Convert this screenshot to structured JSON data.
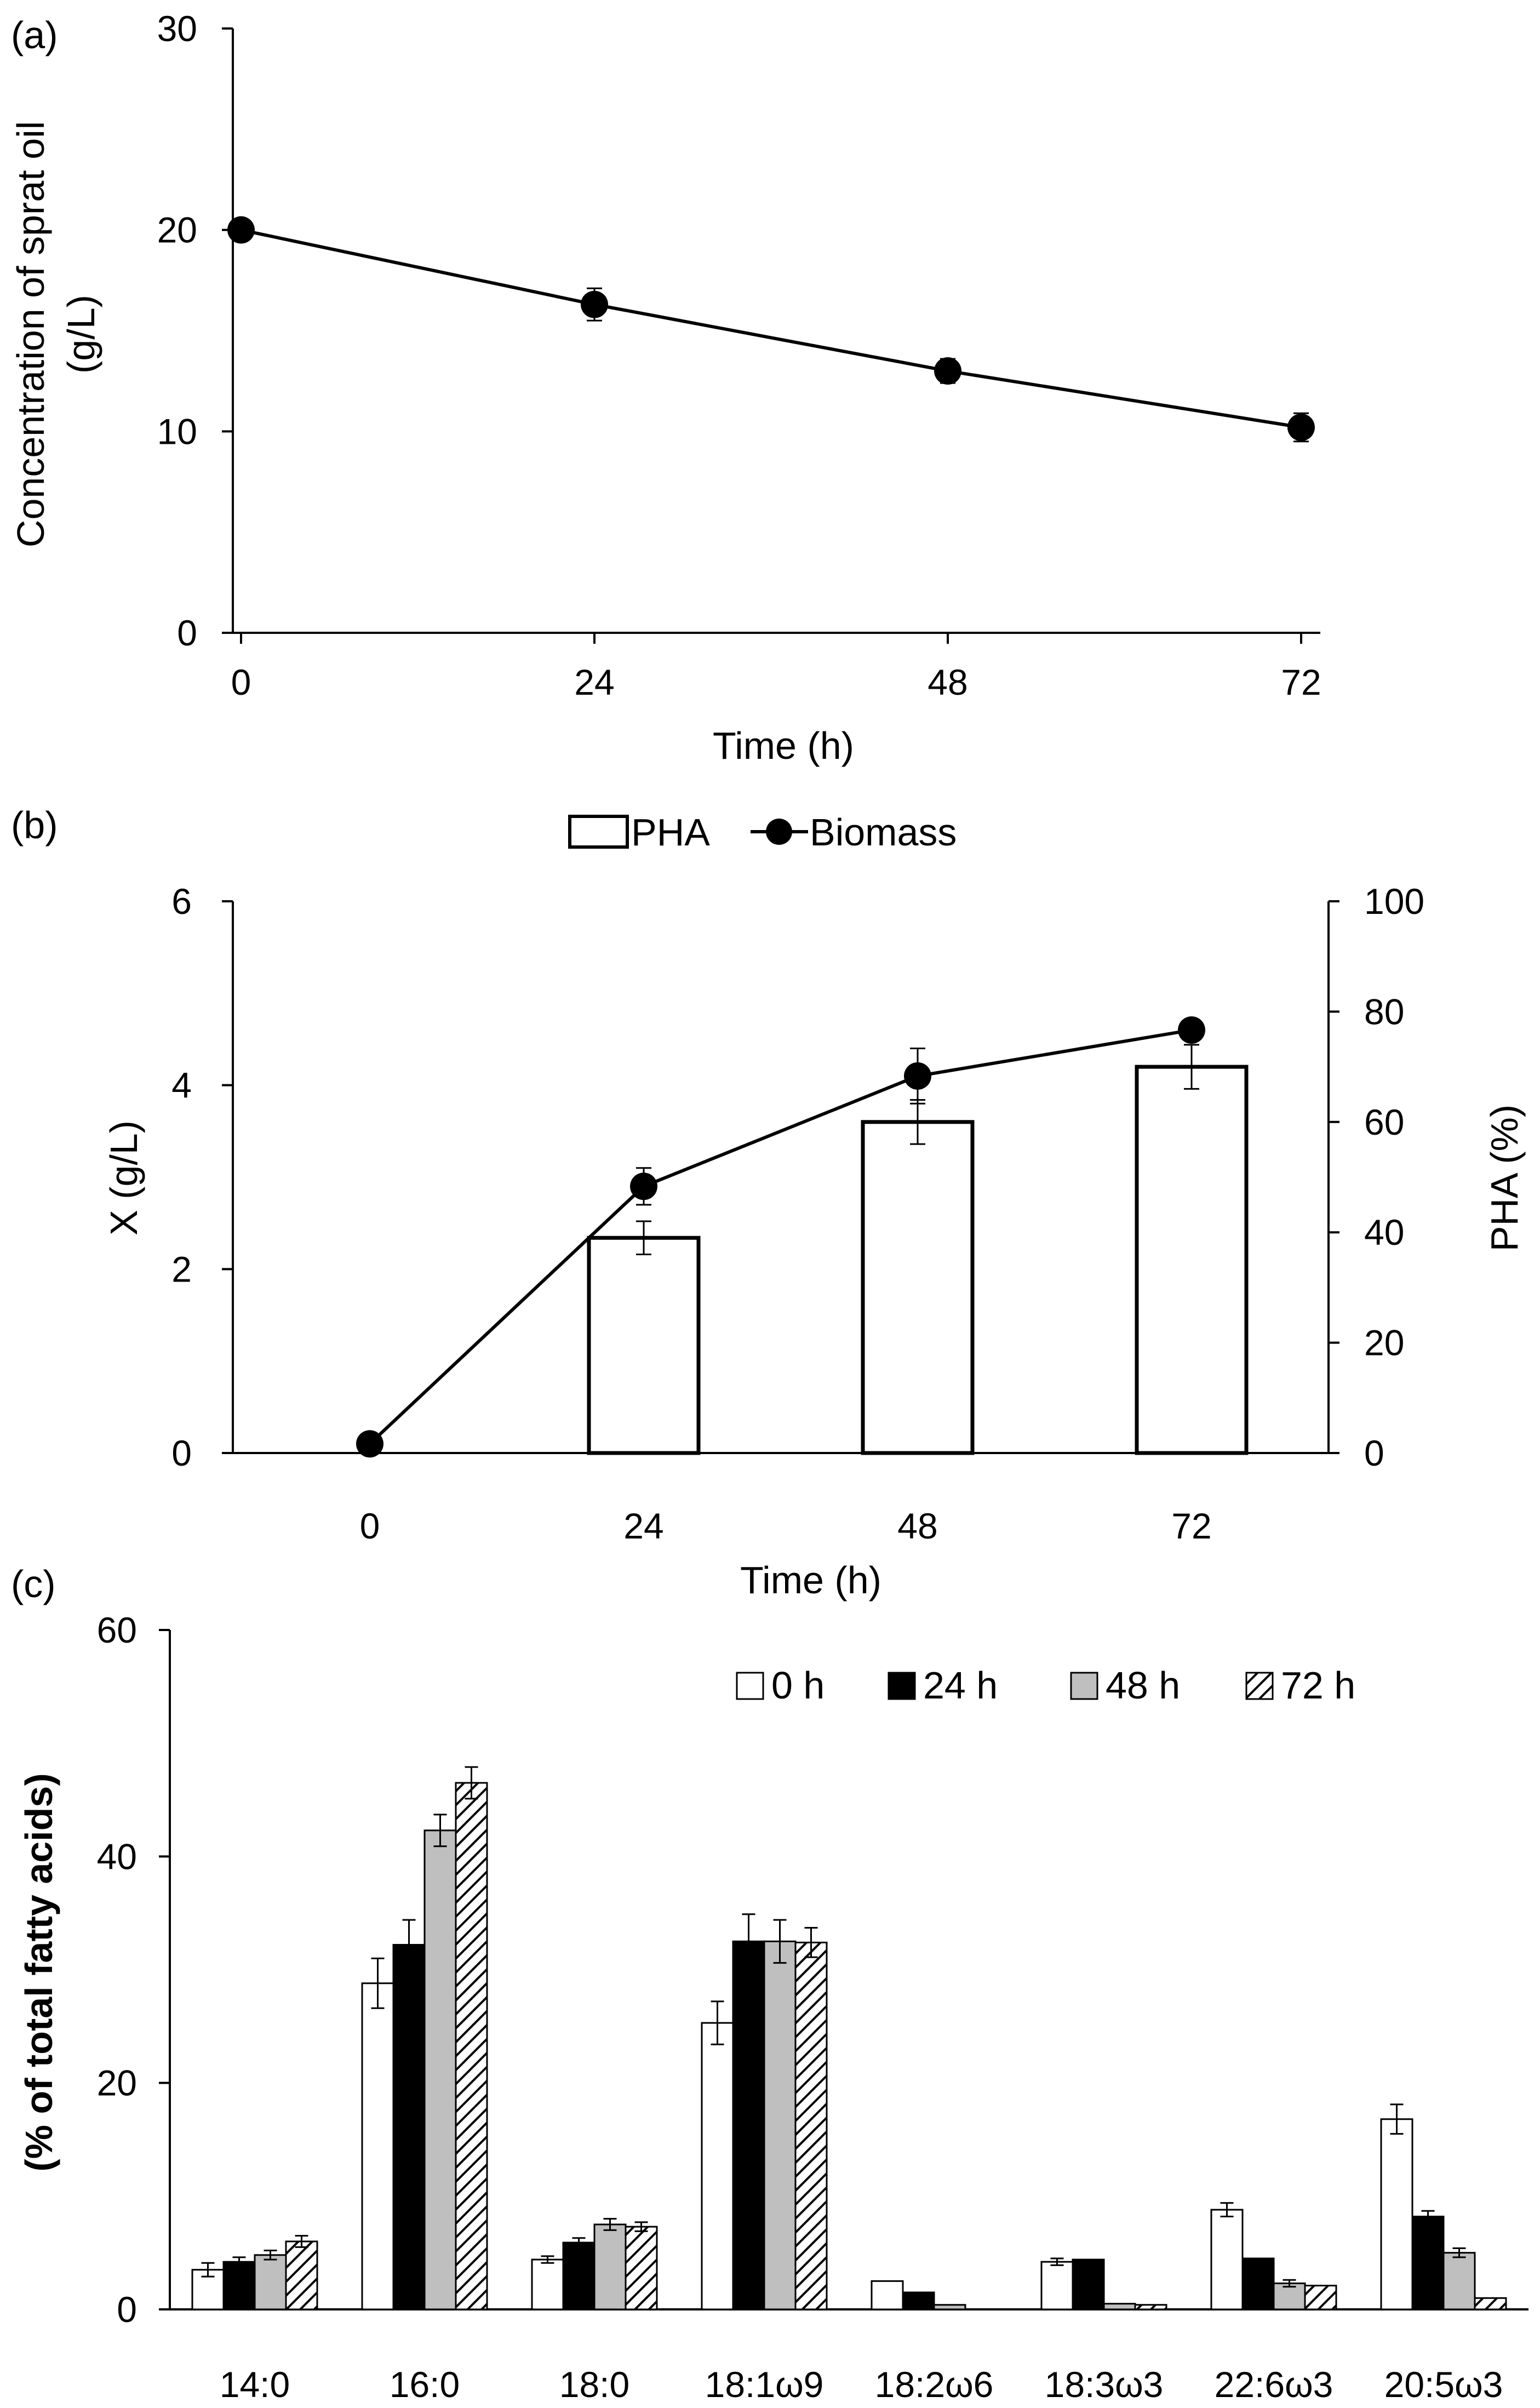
{
  "chart_data": [
    {
      "panel_label": "(a)",
      "type": "line",
      "title": "",
      "xlabel": "Time (h)",
      "ylabel": "Concentration of sprat oil (g/L)",
      "ylabel_lines": [
        "Concentration of sprat oil",
        "(g/L)"
      ],
      "x": [
        0,
        24,
        48,
        72
      ],
      "xlim": [
        0,
        72
      ],
      "x_ticks": [
        "0",
        "24",
        "48",
        "72"
      ],
      "ylim": [
        0,
        30
      ],
      "y_ticks": [
        "0",
        "10",
        "20",
        "30"
      ],
      "series": [
        {
          "values": [
            20.0,
            16.3,
            13.0,
            10.2
          ],
          "errors": [
            0.4,
            0.8,
            0.6,
            0.7
          ],
          "marker": "circle",
          "color": "#000000"
        }
      ],
      "grid": false
    },
    {
      "panel_label": "(b)",
      "type": "bar+line",
      "title": "",
      "xlabel": "Time (h)",
      "ylabel_left": "X (g/L)",
      "ylabel_right": "PHA (%)",
      "categories": [
        "0",
        "24",
        "48",
        "72"
      ],
      "ylim_left": [
        0,
        6
      ],
      "y_ticks_left": [
        "0",
        "2",
        "4",
        "6"
      ],
      "ylim_right": [
        0,
        100
      ],
      "y_ticks_right": [
        "0",
        "20",
        "40",
        "60",
        "80",
        "100"
      ],
      "legend": [
        "PHA",
        "Biomass"
      ],
      "legend_position": "top-center",
      "series": [
        {
          "name": "PHA",
          "kind": "bar",
          "axis": "right",
          "values": [
            0,
            39,
            60,
            70
          ],
          "errors": [
            0,
            3,
            4,
            4
          ],
          "color": "#ffffff"
        },
        {
          "name": "Biomass",
          "kind": "line",
          "axis": "left",
          "values": [
            0.1,
            2.9,
            4.1,
            4.6
          ],
          "errors": [
            0,
            0.2,
            0.3,
            0
          ],
          "marker": "circle",
          "color": "#000000"
        }
      ],
      "grid": false
    },
    {
      "panel_label": "(c)",
      "type": "bar",
      "title": "",
      "xlabel": "",
      "ylabel": "(% of total fatty acids)",
      "categories": [
        "14:0",
        "16:0",
        "18:0",
        "18:1ω9",
        "18:2ω6",
        "18:3ω3",
        "22:6ω3",
        "20:5ω3"
      ],
      "ylim": [
        0,
        60
      ],
      "y_ticks": [
        "0",
        "20",
        "40",
        "60"
      ],
      "legend": [
        "0 h",
        "24 h",
        "48 h",
        "72 h"
      ],
      "legend_position": "top-right",
      "series": [
        {
          "name": "0 h",
          "fill": "#ffffff",
          "values": [
            3.5,
            28.8,
            4.4,
            25.3,
            2.5,
            4.2,
            8.8,
            16.8
          ],
          "errors": [
            0.6,
            2.2,
            0.3,
            1.9,
            0,
            0.3,
            0.6,
            1.3
          ]
        },
        {
          "name": "24 h",
          "fill": "#000000",
          "values": [
            4.2,
            32.2,
            5.9,
            32.5,
            1.5,
            4.4,
            4.5,
            8.2
          ],
          "errors": [
            0.4,
            2.2,
            0.4,
            2.4,
            0,
            0,
            0,
            0.5
          ]
        },
        {
          "name": "48 h",
          "fill": "#bfbfbf",
          "values": [
            4.8,
            42.3,
            7.5,
            32.5,
            0.4,
            0.5,
            2.3,
            5.0
          ],
          "errors": [
            0.4,
            1.4,
            0.5,
            1.9,
            0,
            0,
            0.3,
            0.4
          ]
        },
        {
          "name": "72 h",
          "fill": "hatch",
          "values": [
            6.0,
            46.5,
            7.3,
            32.4,
            0,
            0.4,
            2.1,
            1.0
          ],
          "errors": [
            0.5,
            1.4,
            0.4,
            1.3,
            0,
            0,
            0,
            0
          ]
        }
      ],
      "grid": false
    }
  ]
}
